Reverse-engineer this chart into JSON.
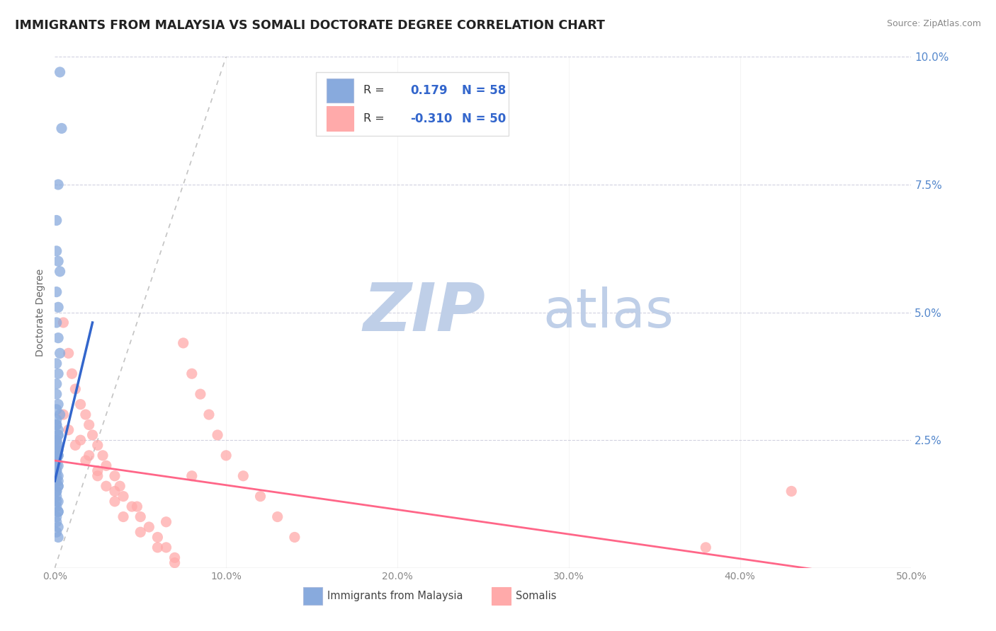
{
  "title": "IMMIGRANTS FROM MALAYSIA VS SOMALI DOCTORATE DEGREE CORRELATION CHART",
  "source": "Source: ZipAtlas.com",
  "xlabel_blue": "Immigrants from Malaysia",
  "xlabel_pink": "Somalis",
  "ylabel": "Doctorate Degree",
  "xlim": [
    0.0,
    0.5
  ],
  "ylim": [
    0.0,
    0.1
  ],
  "xticks": [
    0.0,
    0.1,
    0.2,
    0.3,
    0.4,
    0.5
  ],
  "yticks": [
    0.0,
    0.025,
    0.05,
    0.075,
    0.1
  ],
  "ytick_labels_right": [
    "",
    "2.5%",
    "5.0%",
    "7.5%",
    "10.0%"
  ],
  "xtick_labels": [
    "0.0%",
    "10.0%",
    "20.0%",
    "30.0%",
    "40.0%",
    "50.0%"
  ],
  "blue_R": 0.179,
  "blue_N": 58,
  "pink_R": -0.31,
  "pink_N": 50,
  "blue_color": "#88AADD",
  "pink_color": "#FFAAAA",
  "blue_line_color": "#3366CC",
  "pink_line_color": "#FF6688",
  "ref_line_color": "#AAAAAA",
  "watermark_zip": "ZIP",
  "watermark_atlas": "atlas",
  "watermark_color_zip": "#BFCFE8",
  "watermark_color_atlas": "#BFCFE8",
  "title_fontsize": 12.5,
  "source_fontsize": 9,
  "legend_R_color": "#333333",
  "legend_val_color": "#3366CC",
  "blue_scatter_x": [
    0.003,
    0.004,
    0.002,
    0.001,
    0.001,
    0.002,
    0.003,
    0.001,
    0.002,
    0.001,
    0.002,
    0.003,
    0.001,
    0.002,
    0.001,
    0.001,
    0.002,
    0.003,
    0.001,
    0.002,
    0.001,
    0.002,
    0.001,
    0.002,
    0.001,
    0.002,
    0.001,
    0.002,
    0.001,
    0.002,
    0.001,
    0.001,
    0.002,
    0.001,
    0.002,
    0.001,
    0.001,
    0.002,
    0.001,
    0.002,
    0.001,
    0.002,
    0.001,
    0.002,
    0.001,
    0.001,
    0.002,
    0.001,
    0.001,
    0.002,
    0.001,
    0.001,
    0.002,
    0.001,
    0.002,
    0.001,
    0.001,
    0.002
  ],
  "blue_scatter_y": [
    0.097,
    0.086,
    0.075,
    0.068,
    0.062,
    0.06,
    0.058,
    0.054,
    0.051,
    0.048,
    0.045,
    0.042,
    0.04,
    0.038,
    0.036,
    0.034,
    0.032,
    0.03,
    0.028,
    0.026,
    0.025,
    0.024,
    0.023,
    0.022,
    0.021,
    0.02,
    0.019,
    0.018,
    0.017,
    0.016,
    0.015,
    0.014,
    0.013,
    0.012,
    0.011,
    0.01,
    0.009,
    0.008,
    0.007,
    0.006,
    0.029,
    0.027,
    0.025,
    0.023,
    0.021,
    0.019,
    0.017,
    0.015,
    0.013,
    0.011,
    0.031,
    0.028,
    0.026,
    0.024,
    0.022,
    0.02,
    0.018,
    0.016
  ],
  "pink_scatter_x": [
    0.005,
    0.008,
    0.01,
    0.012,
    0.015,
    0.018,
    0.02,
    0.022,
    0.025,
    0.028,
    0.03,
    0.035,
    0.038,
    0.04,
    0.045,
    0.05,
    0.055,
    0.06,
    0.065,
    0.07,
    0.075,
    0.08,
    0.085,
    0.09,
    0.095,
    0.1,
    0.11,
    0.12,
    0.13,
    0.14,
    0.015,
    0.02,
    0.025,
    0.03,
    0.035,
    0.04,
    0.05,
    0.06,
    0.07,
    0.08,
    0.005,
    0.008,
    0.012,
    0.018,
    0.025,
    0.035,
    0.048,
    0.065,
    0.43,
    0.38
  ],
  "pink_scatter_y": [
    0.048,
    0.042,
    0.038,
    0.035,
    0.032,
    0.03,
    0.028,
    0.026,
    0.024,
    0.022,
    0.02,
    0.018,
    0.016,
    0.014,
    0.012,
    0.01,
    0.008,
    0.006,
    0.004,
    0.002,
    0.044,
    0.038,
    0.034,
    0.03,
    0.026,
    0.022,
    0.018,
    0.014,
    0.01,
    0.006,
    0.025,
    0.022,
    0.019,
    0.016,
    0.013,
    0.01,
    0.007,
    0.004,
    0.001,
    0.018,
    0.03,
    0.027,
    0.024,
    0.021,
    0.018,
    0.015,
    0.012,
    0.009,
    0.015,
    0.004
  ],
  "blue_line_x": [
    0.0,
    0.022
  ],
  "blue_line_y_start": 0.017,
  "blue_line_y_end": 0.048,
  "pink_line_x": [
    0.0,
    0.5
  ],
  "pink_line_y_start": 0.021,
  "pink_line_y_end": -0.003,
  "ref_line_x": [
    0.0,
    0.1
  ],
  "ref_line_y": [
    0.0,
    0.1
  ]
}
